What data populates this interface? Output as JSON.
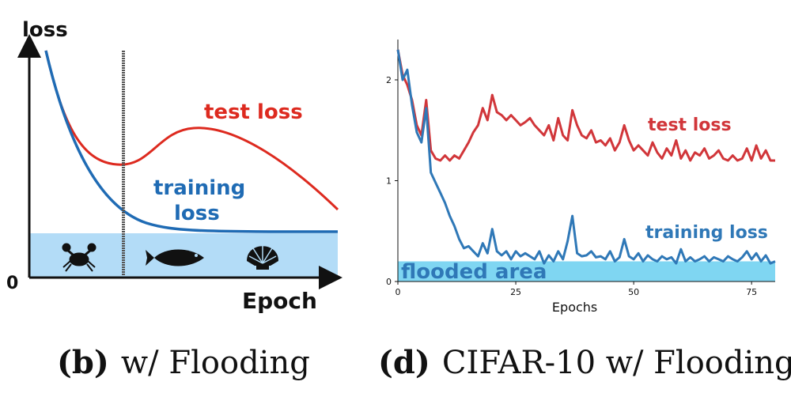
{
  "chart_data": [
    {
      "type": "line",
      "title": "",
      "caption_label": "(b)",
      "caption_text": "w/ Flooding",
      "ylabel": "loss",
      "xlabel": "Epoch",
      "origin_label": "0",
      "annotations": {
        "test": "test loss",
        "training_line1": "training",
        "training_line2": "loss"
      },
      "icons": [
        "crab-icon",
        "fish-icon",
        "shell-icon"
      ],
      "series": [
        {
          "name": "test loss",
          "color": "#dd2a1f"
        },
        {
          "name": "training loss",
          "color": "#1f6bb4"
        }
      ],
      "flood_color": "#b3dcf7",
      "grid": false
    },
    {
      "type": "line",
      "title": "",
      "caption_label": "(d)",
      "caption_text": "CIFAR-10 w/ Flooding",
      "xlabel": "Epochs",
      "ylabel": "",
      "xlim": [
        0,
        80
      ],
      "ylim": [
        0,
        2.4
      ],
      "xticks": [
        0,
        25,
        50,
        75
      ],
      "yticks": [
        0,
        1,
        2
      ],
      "flooded_area_label": "flooded area",
      "flood_level": 0.2,
      "flood_color": "#7fd6f2",
      "grid": false,
      "series": [
        {
          "name": "test loss",
          "color": "#d1363a",
          "x": [
            0,
            1,
            2,
            3,
            4,
            5,
            6,
            7,
            8,
            9,
            10,
            11,
            12,
            13,
            14,
            15,
            16,
            17,
            18,
            19,
            20,
            21,
            22,
            23,
            24,
            25,
            26,
            27,
            28,
            29,
            30,
            31,
            32,
            33,
            34,
            35,
            36,
            37,
            38,
            39,
            40,
            41,
            42,
            43,
            44,
            45,
            46,
            47,
            48,
            49,
            50,
            51,
            52,
            53,
            54,
            55,
            56,
            57,
            58,
            59,
            60,
            61,
            62,
            63,
            64,
            65,
            66,
            67,
            68,
            69,
            70,
            71,
            72,
            73,
            74,
            75,
            76,
            77,
            78,
            79,
            80
          ],
          "values": [
            2.3,
            2.05,
            1.95,
            1.8,
            1.55,
            1.45,
            1.8,
            1.3,
            1.22,
            1.2,
            1.25,
            1.2,
            1.25,
            1.22,
            1.3,
            1.38,
            1.48,
            1.55,
            1.72,
            1.6,
            1.85,
            1.68,
            1.65,
            1.6,
            1.65,
            1.6,
            1.55,
            1.58,
            1.62,
            1.55,
            1.5,
            1.45,
            1.55,
            1.4,
            1.62,
            1.45,
            1.4,
            1.7,
            1.55,
            1.45,
            1.42,
            1.5,
            1.38,
            1.4,
            1.35,
            1.42,
            1.3,
            1.38,
            1.55,
            1.4,
            1.3,
            1.35,
            1.3,
            1.25,
            1.38,
            1.28,
            1.22,
            1.32,
            1.25,
            1.4,
            1.22,
            1.3,
            1.2,
            1.28,
            1.25,
            1.32,
            1.22,
            1.25,
            1.3,
            1.22,
            1.2,
            1.25,
            1.2,
            1.22,
            1.32,
            1.2,
            1.35,
            1.22,
            1.3,
            1.2,
            1.2
          ]
        },
        {
          "name": "training loss",
          "color": "#2f78b7",
          "x": [
            0,
            1,
            2,
            3,
            4,
            5,
            6,
            7,
            8,
            9,
            10,
            11,
            12,
            13,
            14,
            15,
            16,
            17,
            18,
            19,
            20,
            21,
            22,
            23,
            24,
            25,
            26,
            27,
            28,
            29,
            30,
            31,
            32,
            33,
            34,
            35,
            36,
            37,
            38,
            39,
            40,
            41,
            42,
            43,
            44,
            45,
            46,
            47,
            48,
            49,
            50,
            51,
            52,
            53,
            54,
            55,
            56,
            57,
            58,
            59,
            60,
            61,
            62,
            63,
            64,
            65,
            66,
            67,
            68,
            69,
            70,
            71,
            72,
            73,
            74,
            75,
            76,
            77,
            78,
            79,
            80
          ],
          "values": [
            2.3,
            2.0,
            2.1,
            1.75,
            1.48,
            1.38,
            1.72,
            1.08,
            0.98,
            0.88,
            0.78,
            0.65,
            0.55,
            0.42,
            0.33,
            0.35,
            0.3,
            0.25,
            0.38,
            0.28,
            0.52,
            0.3,
            0.26,
            0.3,
            0.22,
            0.3,
            0.25,
            0.28,
            0.25,
            0.22,
            0.3,
            0.18,
            0.26,
            0.2,
            0.3,
            0.22,
            0.4,
            0.65,
            0.28,
            0.25,
            0.26,
            0.3,
            0.24,
            0.25,
            0.22,
            0.3,
            0.2,
            0.24,
            0.42,
            0.25,
            0.22,
            0.28,
            0.2,
            0.26,
            0.22,
            0.2,
            0.25,
            0.22,
            0.24,
            0.18,
            0.32,
            0.2,
            0.24,
            0.2,
            0.22,
            0.25,
            0.2,
            0.24,
            0.22,
            0.2,
            0.25,
            0.22,
            0.2,
            0.24,
            0.3,
            0.22,
            0.28,
            0.2,
            0.26,
            0.18,
            0.2
          ]
        }
      ]
    }
  ]
}
